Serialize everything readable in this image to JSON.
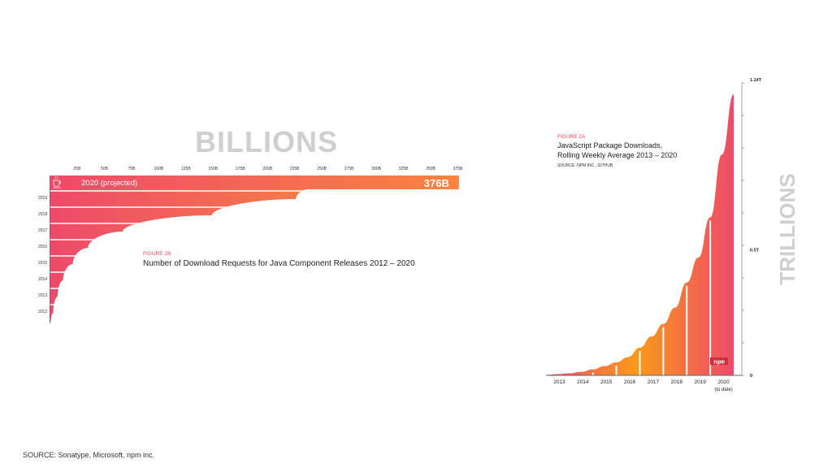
{
  "page": {
    "source_note": "SOURCE: Sonatype, Microsoft, npm inc.",
    "colors": {
      "hot": "#ee4a6a",
      "warm": "#f57b48",
      "amber": "#fa9a1a",
      "gray_text": "#cfcfcf",
      "red_label": "#e8445a"
    }
  },
  "chart_data": [
    {
      "type": "area",
      "id": "figure-2b",
      "figure_label": "FIGURE 2B",
      "title": "Number of Download Requests for Java Component Releases 2012 – 2020",
      "unit_heading": "BILLIONS",
      "x_ticks": [
        "25B",
        "50B",
        "75B",
        "100B",
        "125B",
        "150B",
        "175B",
        "200B",
        "225B",
        "250B",
        "275B",
        "300B",
        "325B",
        "350B",
        "375B"
      ],
      "xlim": [
        0,
        375
      ],
      "categories": [
        "2012",
        "2013",
        "2014",
        "2015",
        "2016",
        "2017",
        "2018",
        "2019"
      ],
      "values": [
        3,
        7,
        12,
        21,
        35,
        67,
        149,
        226
      ],
      "highlight": {
        "label": "2020 (projected)",
        "value": 376,
        "value_label": "376B",
        "icon": "java-logo-icon"
      }
    },
    {
      "type": "area",
      "id": "figure-2a",
      "figure_label": "FIGURE 2A",
      "title_lines": [
        "JavaScript Package Downloads,",
        "Rolling Weekly Average 2013 – 2020"
      ],
      "source": "SOURCE: NPM INC., GITHUB",
      "unit_heading": "TRILLIONS",
      "categories": [
        "2013",
        "2014",
        "2015",
        "2016",
        "2017",
        "2018",
        "2019",
        "2020"
      ],
      "category_sublabel": "(to date)",
      "y_tick_labels": [
        "0",
        "0.5T",
        "1.14T"
      ],
      "y_ticks": [
        0,
        0.5,
        1.14
      ],
      "ylim": [
        0,
        1.14
      ],
      "curve": {
        "x": [
          0,
          0.5,
          1.0,
          1.5,
          2.0,
          2.5,
          3.0,
          3.5,
          4.0,
          4.5,
          5.0,
          5.5,
          6.0,
          6.5,
          7.0,
          7.5,
          8.0
        ],
        "y": [
          0.002,
          0.005,
          0.008,
          0.014,
          0.024,
          0.037,
          0.052,
          0.073,
          0.11,
          0.155,
          0.205,
          0.27,
          0.37,
          0.47,
          0.63,
          0.88,
          1.12
        ]
      },
      "badge": "npm"
    }
  ]
}
